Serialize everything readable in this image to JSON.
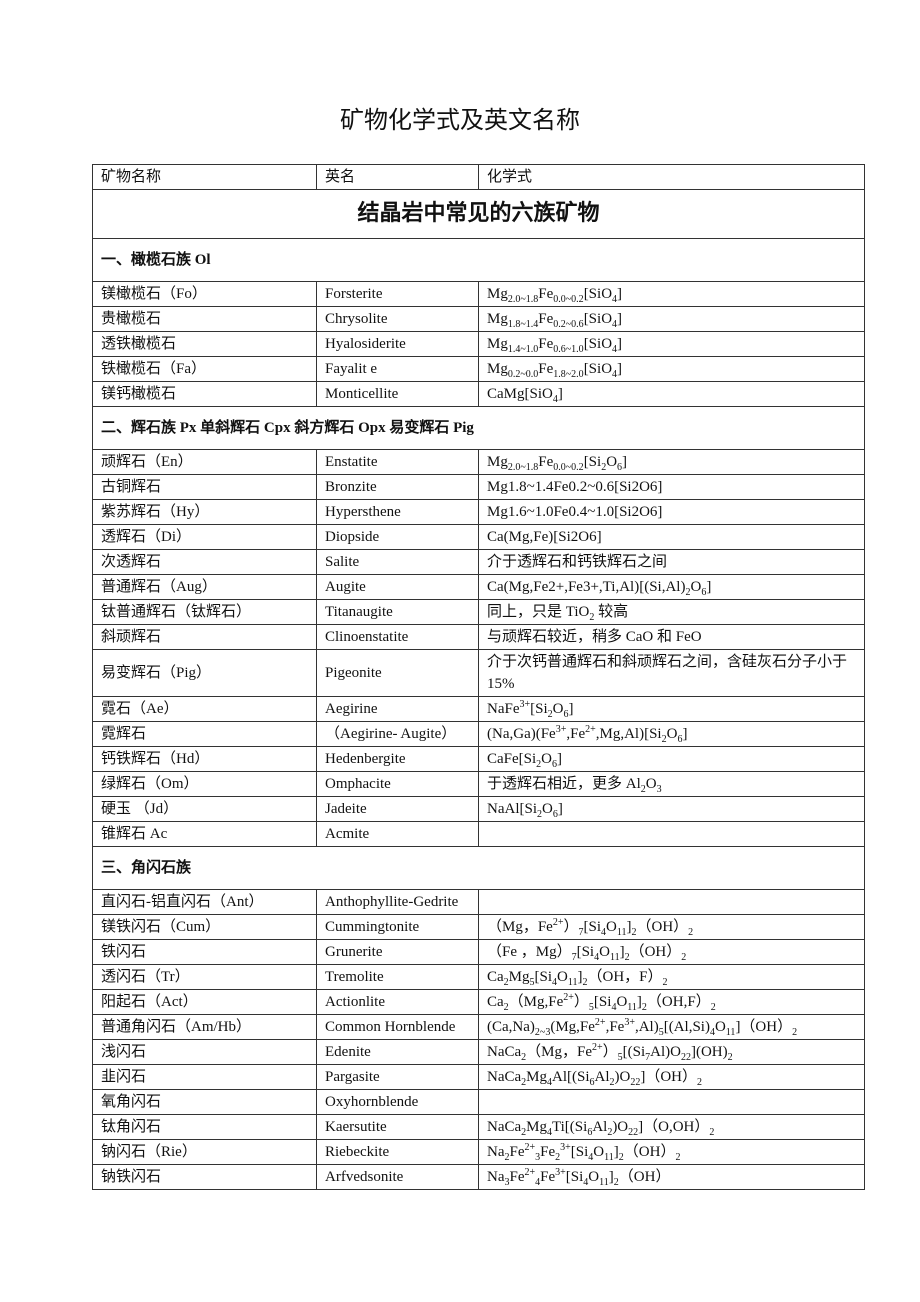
{
  "title": "矿物化学式及英文名称",
  "headers": [
    "矿物名称",
    "英名",
    "化学式"
  ],
  "section": "结晶岩中常见的六族矿物",
  "groups": [
    {
      "title": "一、橄榄石族  Ol",
      "rows": [
        [
          "镁橄榄石（Fo）",
          "Forsterite",
          "Mg_{2.0~1.8}Fe_{0.0~0.2}[SiO_{4}]"
        ],
        [
          "贵橄榄石",
          "Chrysolite",
          "Mg_{1.8~1.4}Fe_{0.2~0.6}[SiO_{4}]"
        ],
        [
          "透铁橄榄石",
          "Hyalosiderite",
          "Mg_{1.4~1.0}Fe_{0.6~1.0}[SiO_{4}]"
        ],
        [
          "铁橄榄石（Fa）",
          "Fayalit e",
          "Mg_{0.2~0.0}Fe_{1.8~2.0}[SiO_{4}]"
        ],
        [
          "镁钙橄榄石",
          "Monticellite",
          "CaMg[SiO_{4}]"
        ]
      ]
    },
    {
      "title": "二、辉石族 Px   单斜辉石 Cpx   斜方辉石  Opx   易变辉石  Pig",
      "rows": [
        [
          "顽辉石（En）",
          "Enstatite",
          "Mg_{2.0~1.8}Fe_{0.0~0.2}[Si_{2}O_{6}]"
        ],
        [
          "古铜辉石",
          "Bronzite",
          "Mg1.8~1.4Fe0.2~0.6[Si2O6]"
        ],
        [
          "紫苏辉石（Hy）",
          "Hypersthene",
          "Mg1.6~1.0Fe0.4~1.0[Si2O6]"
        ],
        [
          "透辉石（Di）",
          "Diopside",
          "Ca(Mg,Fe)[Si2O6]"
        ],
        [
          "次透辉石",
          "Salite",
          "介于透辉石和钙铁辉石之间"
        ],
        [
          "普通辉石（Aug）",
          "Augite",
          "Ca(Mg,Fe2+,Fe3+,Ti,Al)[(Si,Al)_{2}O_{6}]"
        ],
        [
          "钛普通辉石（钛辉石）",
          "Titanaugite",
          "同上，只是 TiO_{2} 较高"
        ],
        [
          "斜顽辉石",
          "Clinoenstatite",
          "与顽辉石较近，稍多 CaO 和 FeO"
        ],
        [
          "易变辉石（Pig）",
          "Pigeonite",
          "介于次钙普通辉石和斜顽辉石之间，含硅灰石分子小于 15%"
        ],
        [
          "霓石（Ae）",
          "Aegirine",
          "NaFe^{3+}[Si_{2}O_{6}]"
        ],
        [
          "霓辉石",
          "（Aegirine- Augite）",
          "(Na,Ga)(Fe^{3+},Fe^{2+},Mg,Al)[Si_{2}O_{6}]"
        ],
        [
          "钙铁辉石（Hd）",
          "Hedenbergite",
          "CaFe[Si_{2}O_{6}]"
        ],
        [
          "绿辉石（Om）",
          "Omphacite",
          "于透辉石相近，更多 Al_{2}O_{3}"
        ],
        [
          "硬玉  （Jd）",
          "Jadeite",
          "NaAl[Si_{2}O_{6}]"
        ],
        [
          "锥辉石 Ac",
          "Acmite",
          ""
        ]
      ]
    },
    {
      "title": "三、角闪石族",
      "rows": [
        [
          "直闪石-铝直闪石（Ant）",
          "Anthophyllite-Gedrite",
          ""
        ],
        [
          "镁铁闪石（Cum）",
          "Cummingtonite",
          "（Mg，Fe^{2+}）_{7}[Si_{4}O_{11}]_{2}（OH）_{2}"
        ],
        [
          "铁闪石",
          "Grunerite",
          "（Fe ，Mg）_{7}[Si_{4}O_{11}]_{2}（OH）_{2}"
        ],
        [
          "透闪石（Tr）",
          "Tremolite",
          "Ca_{2}Mg_{5}[Si_{4}O_{11}]_{2}（OH，F）_{2}"
        ],
        [
          "阳起石（Act）",
          "Actionlite",
          "Ca_{2}（Mg,Fe^{2+}）_{5}[Si_{4}O_{11}]_{2}（OH,F）_{2}"
        ],
        [
          "普通角闪石（Am/Hb）",
          "Common Hornblende",
          "(Ca,Na)_{2~3}(Mg,Fe^{2+},Fe^{3+},Al)_{5}[(Al,Si)_{4}O_{11}]（OH）_{2}"
        ],
        [
          "浅闪石",
          "Edenite",
          "NaCa_{2}（Mg，Fe^{2+}）_{5}[(Si_{7}Al)O_{22}](OH)_{2}"
        ],
        [
          "韭闪石",
          "Pargasite",
          "NaCa_{2}Mg_{4}Al[(Si_{6}Al_{2})O_{22}]（OH）_{2}"
        ],
        [
          "氧角闪石",
          "Oxyhornblende",
          ""
        ],
        [
          "钛角闪石",
          "Kaersutite",
          "NaCa_{2}Mg_{4}Ti[(Si_{6}Al_{2})O_{22}]（O,OH）_{2}"
        ],
        [
          "钠闪石（Rie）",
          "Riebeckite",
          "Na_{2}Fe^{2+}_{3}Fe_{2}^{3+}[Si_{4}O_{11}]_{2}（OH）_{2}"
        ],
        [
          "钠铁闪石",
          "Arfvedsonite",
          "Na_{3}Fe^{2+}_{4}Fe^{3+}[Si_{4}O_{11}]_{2}（OH）"
        ]
      ]
    }
  ]
}
